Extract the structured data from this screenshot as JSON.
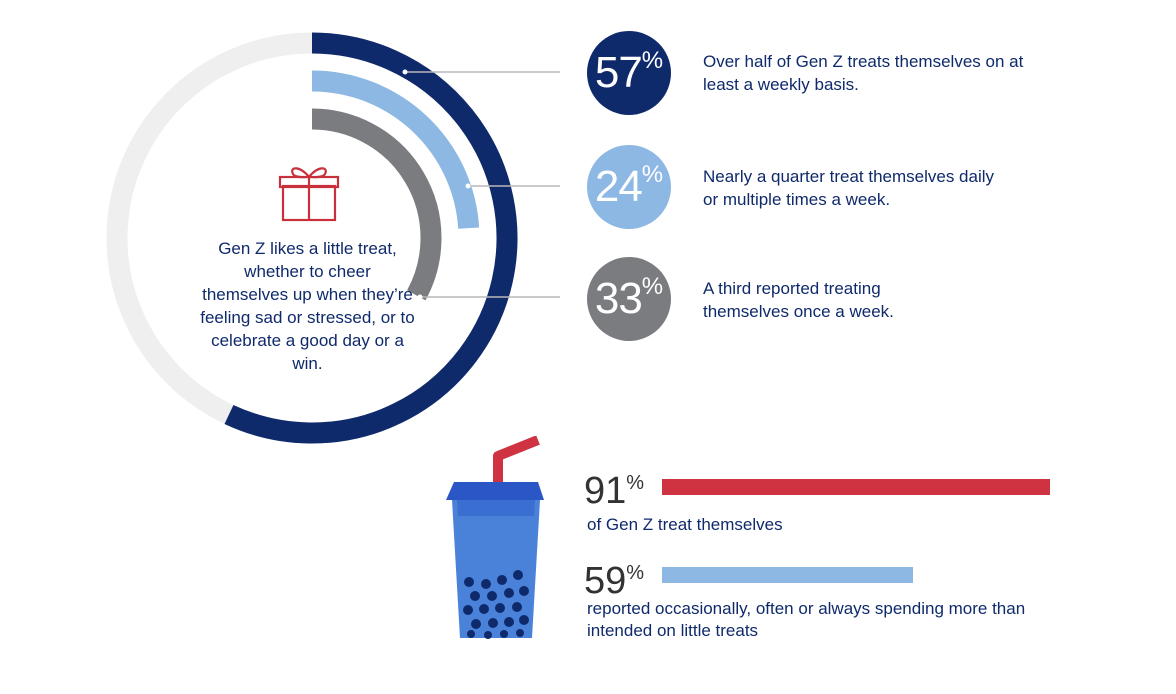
{
  "chart_data": [
    {
      "type": "radial-bar",
      "center_text": "Gen Z likes a little treat, whether to cheer themselves up when they’re feeling sad or stressed, or to celebrate a good day or a win.",
      "series": [
        {
          "name": "weekly",
          "value": 57,
          "percent_label": "57",
          "description": "Over half of Gen Z treats themselves on at least a weekly basis.",
          "color": "#0f2a6b"
        },
        {
          "name": "daily-or-multiple",
          "value": 24,
          "percent_label": "24",
          "description": "Nearly a quarter treat themselves daily or multiple times a week.",
          "color": "#8db8e4"
        },
        {
          "name": "once-a-week",
          "value": 33,
          "percent_label": "33",
          "description": "A third reported treating themselves once a week.",
          "color": "#7b7c80"
        }
      ]
    },
    {
      "type": "bar",
      "orientation": "horizontal",
      "xlim": [
        0,
        100
      ],
      "series": [
        {
          "name": "treat-themselves",
          "value": 91,
          "percent_label": "91",
          "description": "of Gen Z treat themselves",
          "color": "#cf3341"
        },
        {
          "name": "overspend",
          "value": 59,
          "percent_label": "59",
          "description": "reported occasionally, often or always spending more than intended on little treats",
          "color": "#8db8e4"
        }
      ]
    }
  ],
  "symbols": {
    "percent": "%"
  },
  "icons": {
    "gift": "gift-icon",
    "drink": "bubble-tea-icon"
  },
  "colors": {
    "track": "#efefef",
    "connector": "#b8b8b8"
  }
}
